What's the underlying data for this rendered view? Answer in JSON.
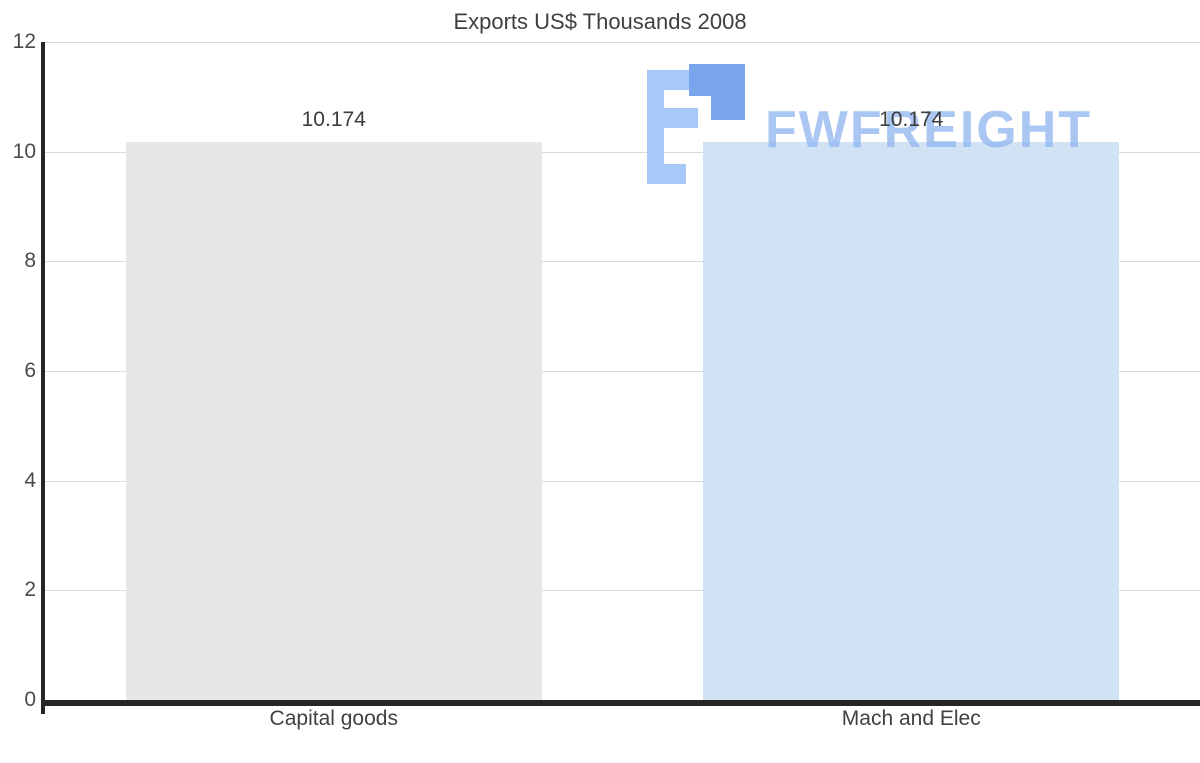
{
  "title": "Exports US$ Thousands 2008",
  "watermark": {
    "text": "FWFREIGHT",
    "color": "#9fc5f8",
    "icon_dark_color": "#6d9eeb"
  },
  "chart_data": {
    "type": "bar",
    "title": "Exports US$ Thousands 2008",
    "categories": [
      "Capital goods",
      "Mach and Elec"
    ],
    "values": [
      10.174,
      10.174
    ],
    "value_labels": [
      "10.174",
      "10.174"
    ],
    "xlabel": "",
    "ylabel": "",
    "ylim": [
      0,
      12
    ],
    "yticks": [
      0,
      2,
      4,
      6,
      8,
      10,
      12
    ],
    "grid": true,
    "legend": "none",
    "bar_colors": [
      "#e7e7e7",
      "#d0e2f4"
    ],
    "gridline_color": "#d9d9d9",
    "axis_color": "#262626"
  }
}
